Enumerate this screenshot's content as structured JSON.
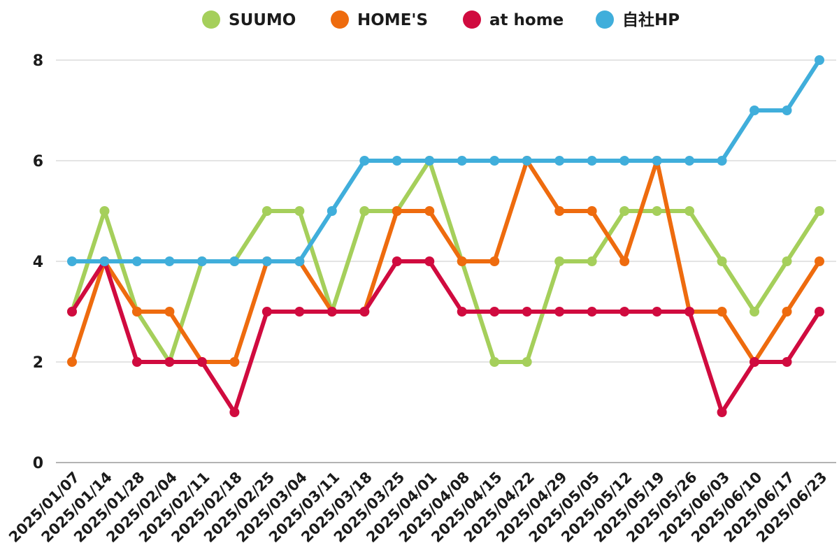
{
  "chart_data": {
    "type": "line",
    "title": "",
    "xlabel": "",
    "ylabel": "",
    "ylim": [
      0,
      8
    ],
    "yticks": [
      0,
      2,
      4,
      6,
      8
    ],
    "ytick_labels": [
      "0",
      "2",
      "4",
      "6",
      "8"
    ],
    "grid": "horizontal",
    "legend_position": "top",
    "x": [
      "2025/01/07",
      "2025/01/14",
      "2025/01/28",
      "2025/02/04",
      "2025/02/11",
      "2025/02/18",
      "2025/02/25",
      "2025/03/04",
      "2025/03/11",
      "2025/03/18",
      "2025/03/25",
      "2025/04/01",
      "2025/04/08",
      "2025/04/15",
      "2025/04/22",
      "2025/04/29",
      "2025/05/05",
      "2025/05/12",
      "2025/05/19",
      "2025/05/26",
      "2025/06/03",
      "2025/06/10",
      "2025/06/17",
      "2025/06/23"
    ],
    "series": [
      {
        "name": "SUUMO",
        "color": "#a5cf5b",
        "values": [
          3,
          5,
          3,
          2,
          4,
          4,
          5,
          5,
          3,
          5,
          5,
          6,
          4,
          2,
          2,
          4,
          4,
          5,
          5,
          5,
          4,
          3,
          4,
          5
        ]
      },
      {
        "name": "HOME'S",
        "color": "#ee6b0e",
        "values": [
          2,
          4,
          3,
          3,
          2,
          2,
          4,
          4,
          3,
          3,
          5,
          5,
          4,
          4,
          6,
          5,
          5,
          4,
          6,
          3,
          3,
          2,
          3,
          4
        ]
      },
      {
        "name": "at home",
        "color": "#d00b3f",
        "values": [
          3,
          4,
          2,
          2,
          2,
          1,
          3,
          3,
          3,
          3,
          4,
          4,
          3,
          3,
          3,
          3,
          3,
          3,
          3,
          3,
          1,
          2,
          2,
          3
        ]
      },
      {
        "name": "自社HP",
        "color": "#40aedb",
        "values": [
          4,
          4,
          4,
          4,
          4,
          4,
          4,
          4,
          5,
          6,
          6,
          6,
          6,
          6,
          6,
          6,
          6,
          6,
          6,
          6,
          6,
          7,
          7,
          8
        ]
      }
    ]
  },
  "colors": {
    "grid": "#c9c9c9",
    "axis": "#9a9a9a",
    "text": "#1b1b1b"
  }
}
